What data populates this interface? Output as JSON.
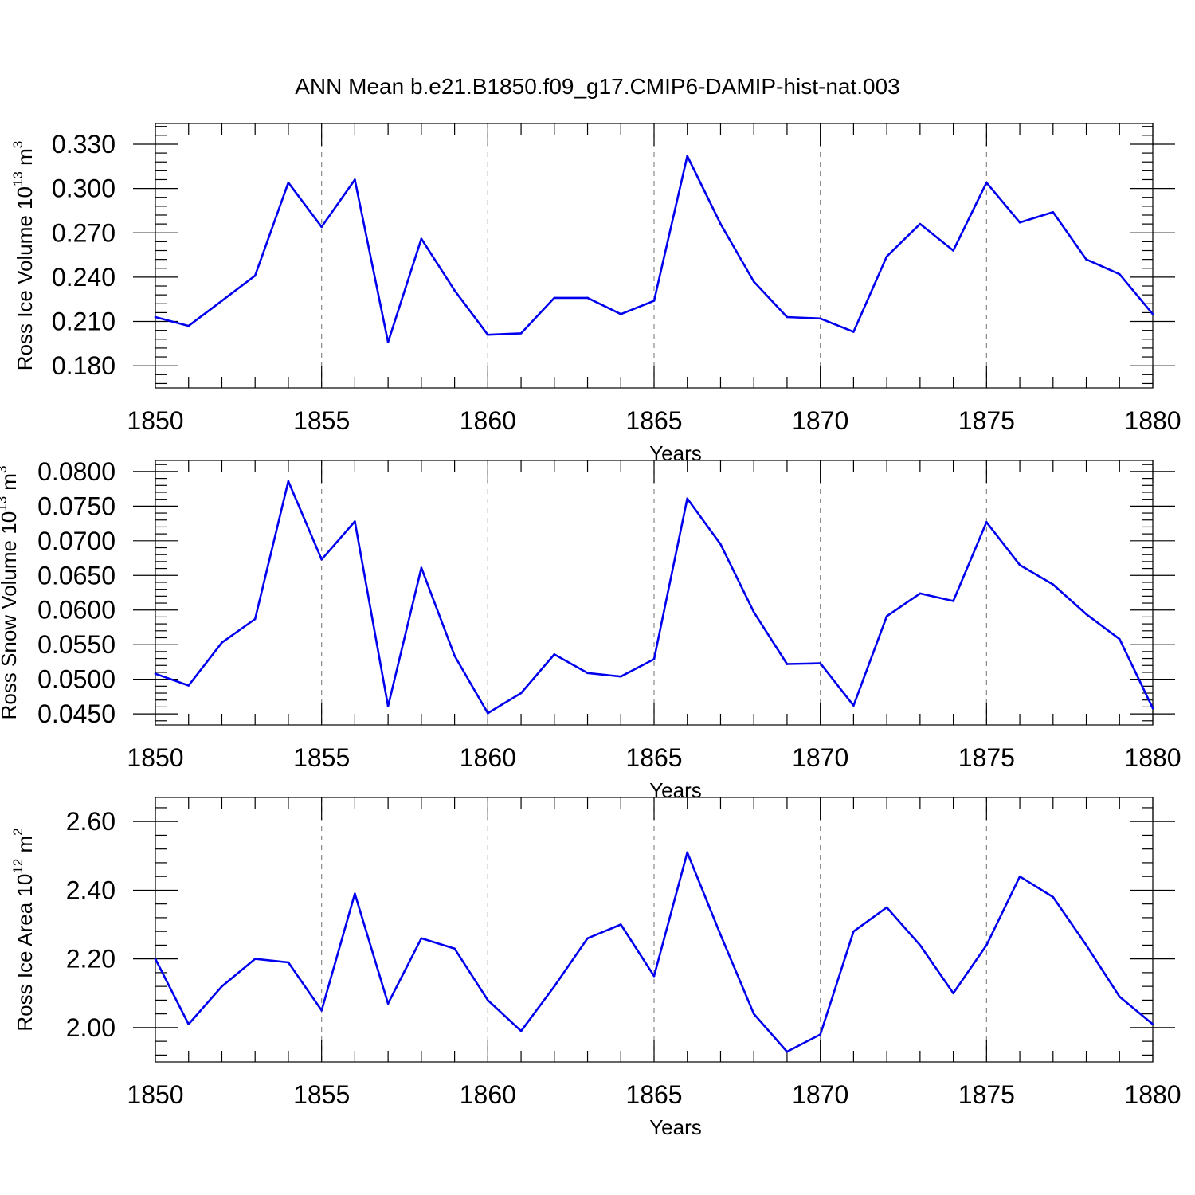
{
  "title": "ANN Mean b.e21.B1850.f09_g17.CMIP6-DAMIP-hist-nat.003",
  "colors": {
    "line": "#0000ee",
    "grid": "#888888",
    "axis": "#000000"
  },
  "chart_data": [
    {
      "type": "line",
      "ylabel_main": "Ross Ice Volume 10",
      "ylabel_exp": "13",
      "ylabel_unit": " m",
      "ylabel_unit_exp": "3",
      "xlabel": "Years",
      "xlim": [
        1850,
        1880
      ],
      "ylim": [
        0.165,
        0.344
      ],
      "yticks": [
        0.18,
        0.21,
        0.24,
        0.27,
        0.3,
        0.33
      ],
      "ytick_labels": [
        "0.180",
        "0.210",
        "0.240",
        "0.270",
        "0.300",
        "0.330"
      ],
      "yminor_step": 0.006,
      "xticks": [
        1850,
        1855,
        1860,
        1865,
        1870,
        1875,
        1880
      ],
      "xtick_labels": [
        "1850",
        "1855",
        "1860",
        "1865",
        "1870",
        "1875",
        "1880"
      ],
      "x": [
        1850,
        1851,
        1852,
        1853,
        1854,
        1855,
        1856,
        1857,
        1858,
        1859,
        1860,
        1861,
        1862,
        1863,
        1864,
        1865,
        1866,
        1867,
        1868,
        1869,
        1870,
        1871,
        1872,
        1873,
        1874,
        1875,
        1876,
        1877,
        1878,
        1879,
        1880
      ],
      "values": [
        0.213,
        0.207,
        0.224,
        0.241,
        0.304,
        0.274,
        0.306,
        0.196,
        0.266,
        0.231,
        0.201,
        0.202,
        0.226,
        0.226,
        0.215,
        0.224,
        0.322,
        0.276,
        0.237,
        0.213,
        0.212,
        0.203,
        0.254,
        0.276,
        0.258,
        0.304,
        0.277,
        0.284,
        0.252,
        0.242,
        0.215
      ]
    },
    {
      "type": "line",
      "ylabel_main": "Ross Snow Volume 10",
      "ylabel_exp": "13",
      "ylabel_unit": " m",
      "ylabel_unit_exp": "3",
      "xlabel": "Years",
      "xlim": [
        1850,
        1880
      ],
      "ylim": [
        0.0434,
        0.0816
      ],
      "yticks": [
        0.045,
        0.05,
        0.055,
        0.06,
        0.065,
        0.07,
        0.075,
        0.08
      ],
      "ytick_labels": [
        "0.0450",
        "0.0500",
        "0.0550",
        "0.0600",
        "0.0650",
        "0.0700",
        "0.0750",
        "0.0800"
      ],
      "yminor_step": 0.001,
      "xticks": [
        1850,
        1855,
        1860,
        1865,
        1870,
        1875,
        1880
      ],
      "xtick_labels": [
        "1850",
        "1855",
        "1860",
        "1865",
        "1870",
        "1875",
        "1880"
      ],
      "x": [
        1850,
        1851,
        1852,
        1853,
        1854,
        1855,
        1856,
        1857,
        1858,
        1859,
        1860,
        1861,
        1862,
        1863,
        1864,
        1865,
        1866,
        1867,
        1868,
        1869,
        1870,
        1871,
        1872,
        1873,
        1874,
        1875,
        1876,
        1877,
        1878,
        1879,
        1880
      ],
      "values": [
        0.0508,
        0.0491,
        0.0553,
        0.0587,
        0.0786,
        0.0673,
        0.0728,
        0.0461,
        0.0661,
        0.0534,
        0.0451,
        0.048,
        0.0536,
        0.0509,
        0.0504,
        0.0529,
        0.0761,
        0.0695,
        0.0597,
        0.0522,
        0.0523,
        0.0462,
        0.0591,
        0.0624,
        0.0613,
        0.0727,
        0.0665,
        0.0637,
        0.0594,
        0.0558,
        0.0458
      ]
    },
    {
      "type": "line",
      "ylabel_main": "Ross Ice Area 10",
      "ylabel_exp": "12",
      "ylabel_unit": " m",
      "ylabel_unit_exp": "2",
      "xlabel": "Years",
      "xlim": [
        1850,
        1880
      ],
      "ylim": [
        1.9,
        2.67
      ],
      "yticks": [
        2.0,
        2.2,
        2.4,
        2.6
      ],
      "ytick_labels": [
        "2.00",
        "2.20",
        "2.40",
        "2.60"
      ],
      "yminor_step": 0.04,
      "xticks": [
        1850,
        1855,
        1860,
        1865,
        1870,
        1875,
        1880
      ],
      "xtick_labels": [
        "1850",
        "1855",
        "1860",
        "1865",
        "1870",
        "1875",
        "1880"
      ],
      "x": [
        1850,
        1851,
        1852,
        1853,
        1854,
        1855,
        1856,
        1857,
        1858,
        1859,
        1860,
        1861,
        1862,
        1863,
        1864,
        1865,
        1866,
        1867,
        1868,
        1869,
        1870,
        1871,
        1872,
        1873,
        1874,
        1875,
        1876,
        1877,
        1878,
        1879,
        1880
      ],
      "values": [
        2.2,
        2.01,
        2.12,
        2.2,
        2.19,
        2.05,
        2.39,
        2.07,
        2.26,
        2.23,
        2.08,
        1.99,
        2.12,
        2.26,
        2.3,
        2.15,
        2.51,
        2.27,
        2.04,
        1.93,
        1.98,
        2.28,
        2.35,
        2.24,
        2.1,
        2.24,
        2.44,
        2.38,
        2.24,
        2.09,
        2.01
      ]
    }
  ]
}
